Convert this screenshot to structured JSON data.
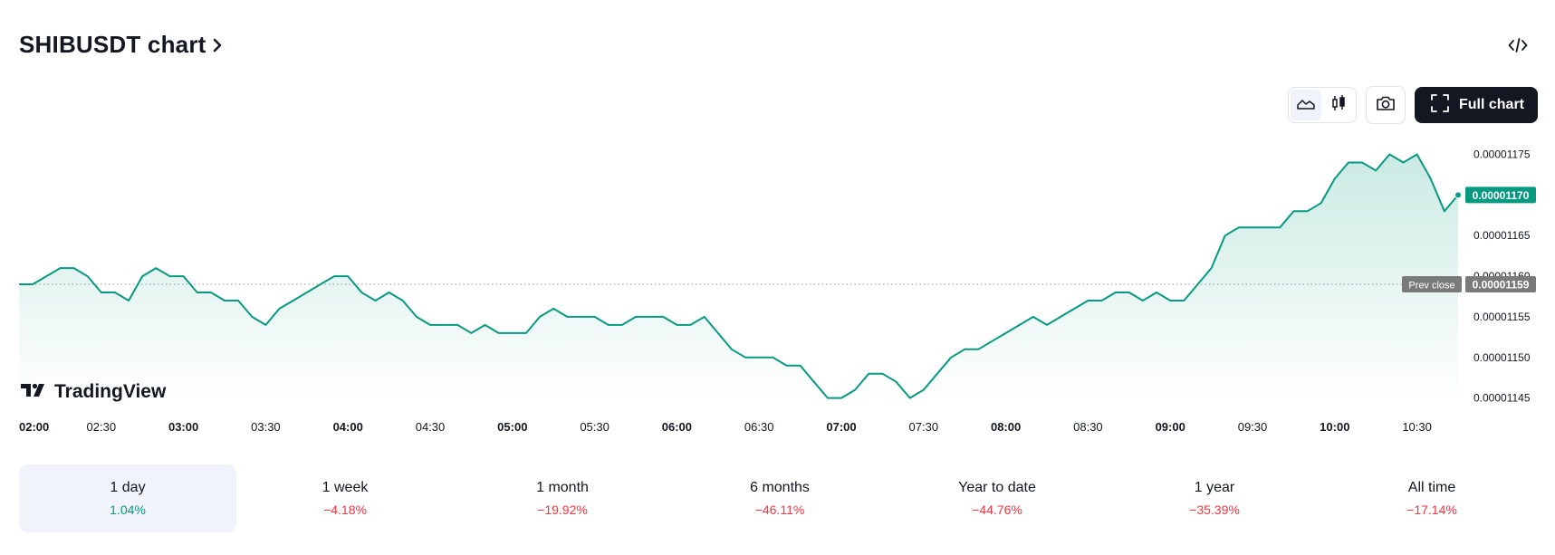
{
  "header": {
    "title": "SHIBUSDT chart"
  },
  "toolbar": {
    "full_chart_label": "Full chart",
    "active_style": "area",
    "icons": [
      "area-chart-icon",
      "candles-icon",
      "camera-icon",
      "fullscreen-icon",
      "code-icon"
    ]
  },
  "watermark": {
    "text": "TradingView"
  },
  "colors": {
    "line": "#089981",
    "fill_top": "#c7e9e1",
    "fill_bottom": "#ffffff",
    "last_price_bg": "#089981",
    "prev_close_bg": "#7a7a7a",
    "negative": "#f23645",
    "positive": "#089981"
  },
  "chart_data": {
    "type": "area",
    "symbol": "SHIBUSDT",
    "x_unit": "time",
    "x_range": [
      "02:00",
      "10:45"
    ],
    "ylim": [
      1.1444e-05,
      1.1784e-05
    ],
    "y_ticks": [
      "0.00001175",
      "0.00001170",
      "0.00001165",
      "0.00001160",
      "0.00001155",
      "0.00001150",
      "0.00001145"
    ],
    "x_ticks": [
      {
        "label": "02:00",
        "bold": true
      },
      {
        "label": "02:30",
        "bold": false
      },
      {
        "label": "03:00",
        "bold": true
      },
      {
        "label": "03:30",
        "bold": false
      },
      {
        "label": "04:00",
        "bold": true
      },
      {
        "label": "04:30",
        "bold": false
      },
      {
        "label": "05:00",
        "bold": true
      },
      {
        "label": "05:30",
        "bold": false
      },
      {
        "label": "06:00",
        "bold": true
      },
      {
        "label": "06:30",
        "bold": false
      },
      {
        "label": "07:00",
        "bold": true
      },
      {
        "label": "07:30",
        "bold": false
      },
      {
        "label": "08:00",
        "bold": true
      },
      {
        "label": "08:30",
        "bold": false
      },
      {
        "label": "09:00",
        "bold": true
      },
      {
        "label": "09:30",
        "bold": false
      },
      {
        "label": "10:00",
        "bold": true
      },
      {
        "label": "10:30",
        "bold": false
      }
    ],
    "prev_close": {
      "label": "Prev close",
      "value": 1.159e-05,
      "value_text": "0.00001159"
    },
    "last_price": {
      "value": 1.17e-05,
      "value_text": "0.00001170"
    },
    "series": [
      {
        "points": [
          [
            "02:00",
            1.159e-05
          ],
          [
            "02:05",
            1.159e-05
          ],
          [
            "02:10",
            1.16e-05
          ],
          [
            "02:15",
            1.161e-05
          ],
          [
            "02:20",
            1.161e-05
          ],
          [
            "02:25",
            1.16e-05
          ],
          [
            "02:30",
            1.158e-05
          ],
          [
            "02:35",
            1.158e-05
          ],
          [
            "02:40",
            1.157e-05
          ],
          [
            "02:45",
            1.16e-05
          ],
          [
            "02:50",
            1.161e-05
          ],
          [
            "02:55",
            1.16e-05
          ],
          [
            "03:00",
            1.16e-05
          ],
          [
            "03:05",
            1.158e-05
          ],
          [
            "03:10",
            1.158e-05
          ],
          [
            "03:15",
            1.157e-05
          ],
          [
            "03:20",
            1.157e-05
          ],
          [
            "03:25",
            1.155e-05
          ],
          [
            "03:30",
            1.154e-05
          ],
          [
            "03:35",
            1.156e-05
          ],
          [
            "03:40",
            1.157e-05
          ],
          [
            "03:45",
            1.158e-05
          ],
          [
            "03:50",
            1.159e-05
          ],
          [
            "03:55",
            1.16e-05
          ],
          [
            "04:00",
            1.16e-05
          ],
          [
            "04:05",
            1.158e-05
          ],
          [
            "04:10",
            1.157e-05
          ],
          [
            "04:15",
            1.158e-05
          ],
          [
            "04:20",
            1.157e-05
          ],
          [
            "04:25",
            1.155e-05
          ],
          [
            "04:30",
            1.154e-05
          ],
          [
            "04:35",
            1.154e-05
          ],
          [
            "04:40",
            1.154e-05
          ],
          [
            "04:45",
            1.153e-05
          ],
          [
            "04:50",
            1.154e-05
          ],
          [
            "04:55",
            1.153e-05
          ],
          [
            "05:00",
            1.153e-05
          ],
          [
            "05:05",
            1.153e-05
          ],
          [
            "05:10",
            1.155e-05
          ],
          [
            "05:15",
            1.156e-05
          ],
          [
            "05:20",
            1.155e-05
          ],
          [
            "05:25",
            1.155e-05
          ],
          [
            "05:30",
            1.155e-05
          ],
          [
            "05:35",
            1.154e-05
          ],
          [
            "05:40",
            1.154e-05
          ],
          [
            "05:45",
            1.155e-05
          ],
          [
            "05:50",
            1.155e-05
          ],
          [
            "05:55",
            1.155e-05
          ],
          [
            "06:00",
            1.154e-05
          ],
          [
            "06:05",
            1.154e-05
          ],
          [
            "06:10",
            1.155e-05
          ],
          [
            "06:15",
            1.153e-05
          ],
          [
            "06:20",
            1.151e-05
          ],
          [
            "06:25",
            1.15e-05
          ],
          [
            "06:30",
            1.15e-05
          ],
          [
            "06:35",
            1.15e-05
          ],
          [
            "06:40",
            1.149e-05
          ],
          [
            "06:45",
            1.149e-05
          ],
          [
            "06:50",
            1.147e-05
          ],
          [
            "06:55",
            1.145e-05
          ],
          [
            "07:00",
            1.145e-05
          ],
          [
            "07:05",
            1.146e-05
          ],
          [
            "07:10",
            1.148e-05
          ],
          [
            "07:15",
            1.148e-05
          ],
          [
            "07:20",
            1.147e-05
          ],
          [
            "07:25",
            1.145e-05
          ],
          [
            "07:30",
            1.146e-05
          ],
          [
            "07:35",
            1.148e-05
          ],
          [
            "07:40",
            1.15e-05
          ],
          [
            "07:45",
            1.151e-05
          ],
          [
            "07:50",
            1.151e-05
          ],
          [
            "07:55",
            1.152e-05
          ],
          [
            "08:00",
            1.153e-05
          ],
          [
            "08:05",
            1.154e-05
          ],
          [
            "08:10",
            1.155e-05
          ],
          [
            "08:15",
            1.154e-05
          ],
          [
            "08:20",
            1.155e-05
          ],
          [
            "08:25",
            1.156e-05
          ],
          [
            "08:30",
            1.157e-05
          ],
          [
            "08:35",
            1.157e-05
          ],
          [
            "08:40",
            1.158e-05
          ],
          [
            "08:45",
            1.158e-05
          ],
          [
            "08:50",
            1.157e-05
          ],
          [
            "08:55",
            1.158e-05
          ],
          [
            "09:00",
            1.157e-05
          ],
          [
            "09:05",
            1.157e-05
          ],
          [
            "09:10",
            1.159e-05
          ],
          [
            "09:15",
            1.161e-05
          ],
          [
            "09:20",
            1.165e-05
          ],
          [
            "09:25",
            1.166e-05
          ],
          [
            "09:30",
            1.166e-05
          ],
          [
            "09:35",
            1.166e-05
          ],
          [
            "09:40",
            1.166e-05
          ],
          [
            "09:45",
            1.168e-05
          ],
          [
            "09:50",
            1.168e-05
          ],
          [
            "09:55",
            1.169e-05
          ],
          [
            "10:00",
            1.172e-05
          ],
          [
            "10:05",
            1.174e-05
          ],
          [
            "10:10",
            1.174e-05
          ],
          [
            "10:15",
            1.173e-05
          ],
          [
            "10:20",
            1.175e-05
          ],
          [
            "10:25",
            1.174e-05
          ],
          [
            "10:30",
            1.175e-05
          ],
          [
            "10:35",
            1.172e-05
          ],
          [
            "10:40",
            1.168e-05
          ],
          [
            "10:45",
            1.17e-05
          ]
        ]
      }
    ]
  },
  "periods": [
    {
      "label": "1 day",
      "change": "1.04%",
      "direction": "up",
      "active": true
    },
    {
      "label": "1 week",
      "change": "−4.18%",
      "direction": "down",
      "active": false
    },
    {
      "label": "1 month",
      "change": "−19.92%",
      "direction": "down",
      "active": false
    },
    {
      "label": "6 months",
      "change": "−46.11%",
      "direction": "down",
      "active": false
    },
    {
      "label": "Year to date",
      "change": "−44.76%",
      "direction": "down",
      "active": false
    },
    {
      "label": "1 year",
      "change": "−35.39%",
      "direction": "down",
      "active": false
    },
    {
      "label": "All time",
      "change": "−17.14%",
      "direction": "down",
      "active": false
    }
  ]
}
